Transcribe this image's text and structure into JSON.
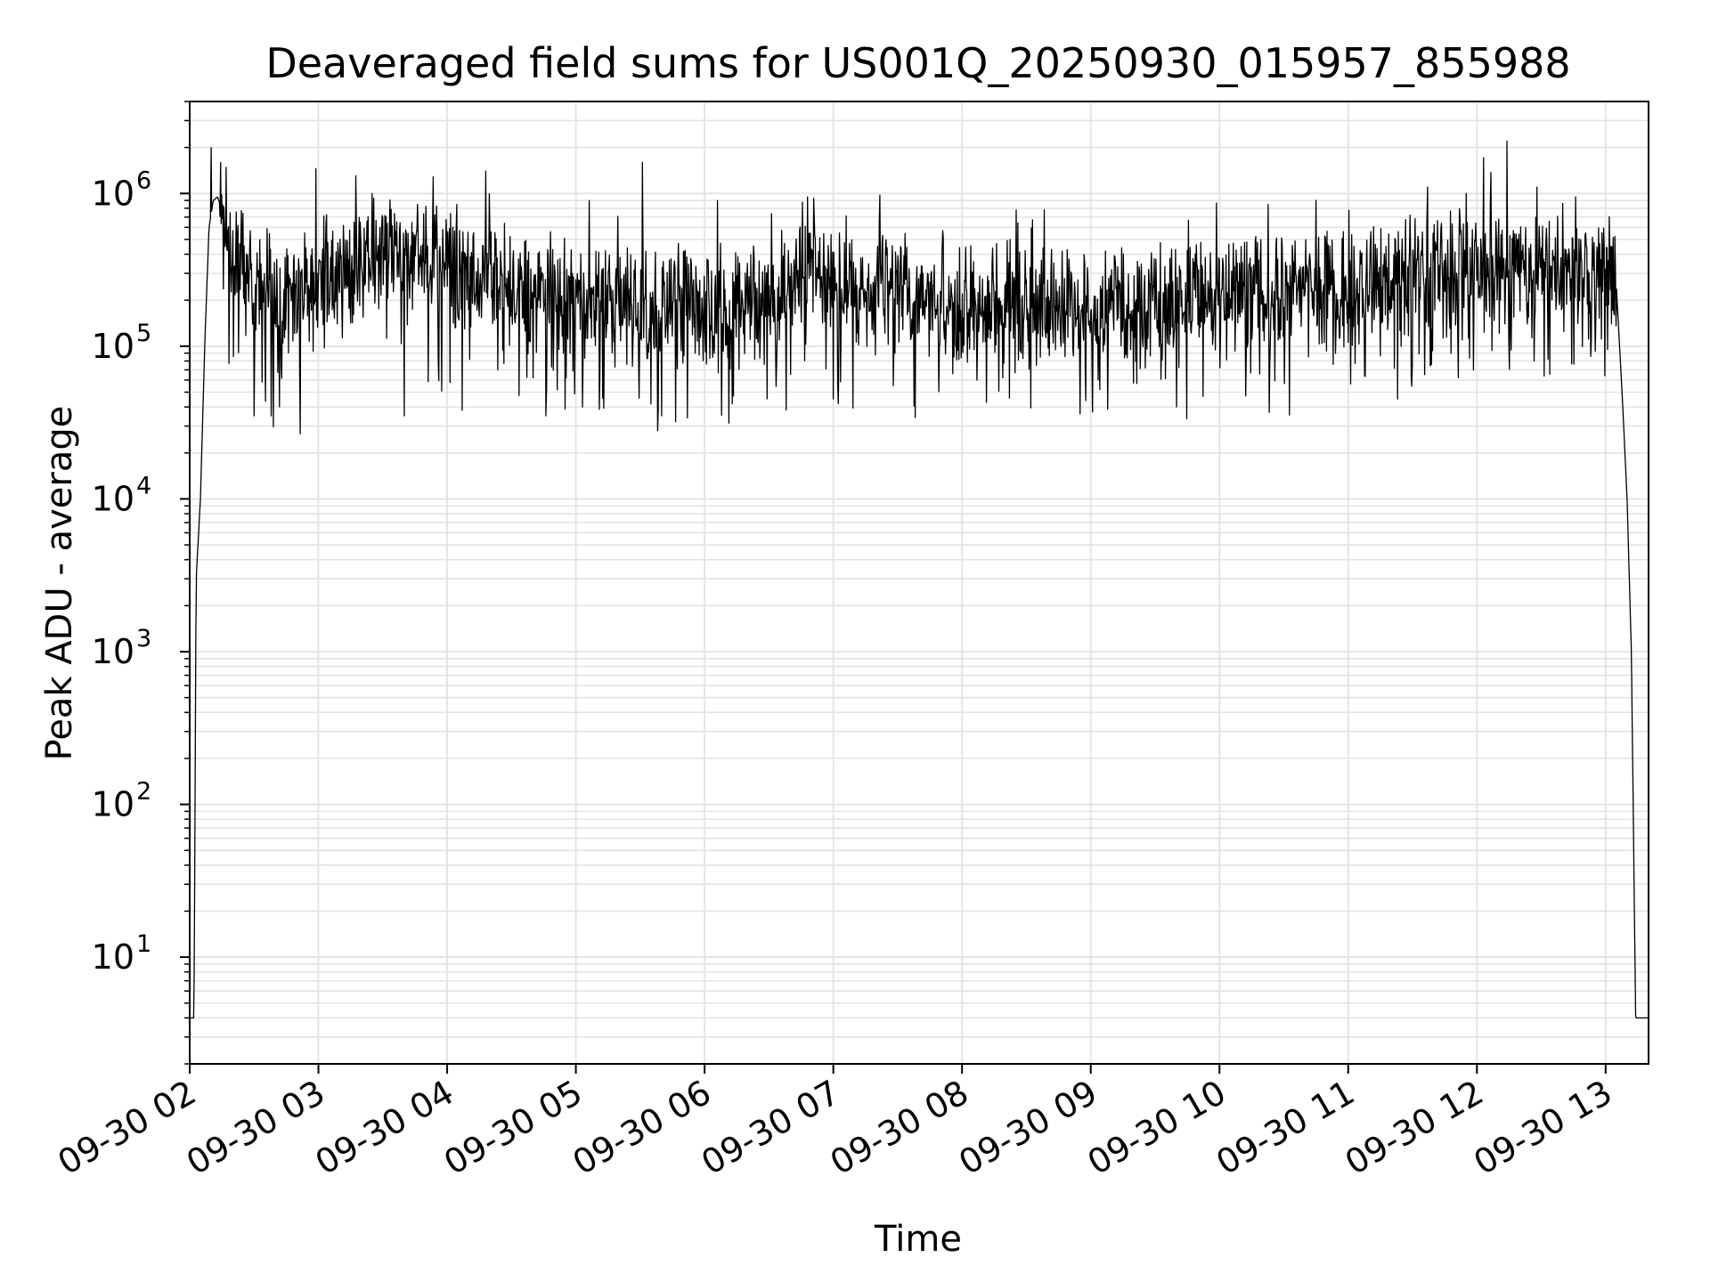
{
  "chart_data": {
    "type": "line",
    "title": "Deaveraged field sums for US001Q_20250930_015957_855988",
    "xlabel": "Time",
    "ylabel": "Peak ADU - average",
    "yscale": "log",
    "xlim": [
      "2025-09-30T02:00",
      "2025-09-30T13:20"
    ],
    "ylim": [
      2,
      4000000
    ],
    "grid": true,
    "line_color": "#000000",
    "grid_color": "#e3e3e3",
    "x_ticks": [
      "09-30 02",
      "09-30 03",
      "09-30 04",
      "09-30 05",
      "09-30 06",
      "09-30 07",
      "09-30 08",
      "09-30 09",
      "09-30 10",
      "09-30 11",
      "09-30 12",
      "09-30 13"
    ],
    "x_tick_times": [
      "2025-09-30T02:00",
      "2025-09-30T03:00",
      "2025-09-30T04:00",
      "2025-09-30T05:00",
      "2025-09-30T06:00",
      "2025-09-30T07:00",
      "2025-09-30T08:00",
      "2025-09-30T09:00",
      "2025-09-30T10:00",
      "2025-09-30T11:00",
      "2025-09-30T12:00",
      "2025-09-30T13:00"
    ],
    "y_ticks": [
      {
        "base": "10",
        "exp": "1",
        "value": 10
      },
      {
        "base": "10",
        "exp": "2",
        "value": 100
      },
      {
        "base": "10",
        "exp": "3",
        "value": 1000
      },
      {
        "base": "10",
        "exp": "4",
        "value": 10000
      },
      {
        "base": "10",
        "exp": "5",
        "value": 100000
      },
      {
        "base": "10",
        "exp": "6",
        "value": 1000000
      }
    ],
    "series": [
      {
        "envelope": {
          "x": [
            "2025-09-30T02:00",
            "2025-09-30T02:02",
            "2025-09-30T02:03",
            "2025-09-30T02:05",
            "2025-09-30T02:07",
            "2025-09-30T02:09",
            "2025-09-30T02:11",
            "2025-09-30T02:13",
            "2025-09-30T02:16",
            "2025-09-30T02:20",
            "2025-09-30T02:30",
            "2025-09-30T02:45",
            "2025-09-30T03:00",
            "2025-09-30T03:30",
            "2025-09-30T04:00",
            "2025-09-30T04:30",
            "2025-09-30T05:00",
            "2025-09-30T05:30",
            "2025-09-30T06:00",
            "2025-09-30T06:40",
            "2025-09-30T06:50",
            "2025-09-30T07:00",
            "2025-09-30T07:30",
            "2025-09-30T08:00",
            "2025-09-30T08:30",
            "2025-09-30T09:00",
            "2025-09-30T09:30",
            "2025-09-30T10:00",
            "2025-09-30T10:30",
            "2025-09-30T11:00",
            "2025-09-30T11:30",
            "2025-09-30T12:00",
            "2025-09-30T12:30",
            "2025-09-30T12:55",
            "2025-09-30T13:05",
            "2025-09-30T13:08",
            "2025-09-30T13:10",
            "2025-09-30T13:12",
            "2025-09-30T13:14",
            "2025-09-30T13:16",
            "2025-09-30T13:20"
          ],
          "y": [
            4,
            4,
            3000,
            10000,
            100000,
            600000,
            900000,
            950000,
            700000,
            400000,
            250000,
            220000,
            300000,
            400000,
            350000,
            230000,
            200000,
            190000,
            170000,
            200000,
            400000,
            260000,
            240000,
            200000,
            190000,
            180000,
            190000,
            210000,
            230000,
            240000,
            300000,
            330000,
            320000,
            330000,
            250000,
            40000,
            10000,
            1000,
            4,
            4,
            4
          ]
        },
        "noise_band": {
          "from": "2025-09-30T02:14",
          "to": "2025-09-30T13:05"
        },
        "spikes": [
          {
            "x": "2025-09-30T02:10",
            "y": 2000000
          },
          {
            "x": "2025-09-30T03:25",
            "y": 1000000
          },
          {
            "x": "2025-09-30T04:18",
            "y": 1400000
          },
          {
            "x": "2025-09-30T05:31",
            "y": 1600000
          },
          {
            "x": "2025-09-30T06:06",
            "y": 900000
          },
          {
            "x": "2025-09-30T06:48",
            "y": 950000
          },
          {
            "x": "2025-09-30T10:45",
            "y": 900000
          },
          {
            "x": "2025-09-30T11:37",
            "y": 1100000
          },
          {
            "x": "2025-09-30T11:55",
            "y": 1000000
          },
          {
            "x": "2025-09-30T12:14",
            "y": 2200000
          },
          {
            "x": "2025-09-30T12:28",
            "y": 1100000
          },
          {
            "x": "2025-09-30T12:46",
            "y": 950000
          }
        ],
        "dips": [
          {
            "x": "2025-09-30T02:30",
            "y": 35000
          },
          {
            "x": "2025-09-30T02:38",
            "y": 35000
          },
          {
            "x": "2025-09-30T03:40",
            "y": 35000
          },
          {
            "x": "2025-09-30T04:07",
            "y": 38000
          },
          {
            "x": "2025-09-30T04:46",
            "y": 35000
          },
          {
            "x": "2025-09-30T05:40",
            "y": 35000
          },
          {
            "x": "2025-09-30T08:55",
            "y": 36000
          },
          {
            "x": "2025-09-30T09:40",
            "y": 40000
          },
          {
            "x": "2025-09-30T11:23",
            "y": 45000
          }
        ]
      }
    ]
  }
}
